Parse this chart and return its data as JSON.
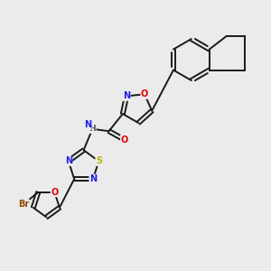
{
  "background_color": "#ebebeb",
  "bond_color": "#1a1a1a",
  "atom_colors": {
    "O": "#e00000",
    "N": "#2020e0",
    "S": "#b8b800",
    "Br": "#964B00",
    "C": "#1a1a1a",
    "H": "#444444"
  },
  "figsize": [
    3.0,
    3.0
  ],
  "dpi": 100
}
